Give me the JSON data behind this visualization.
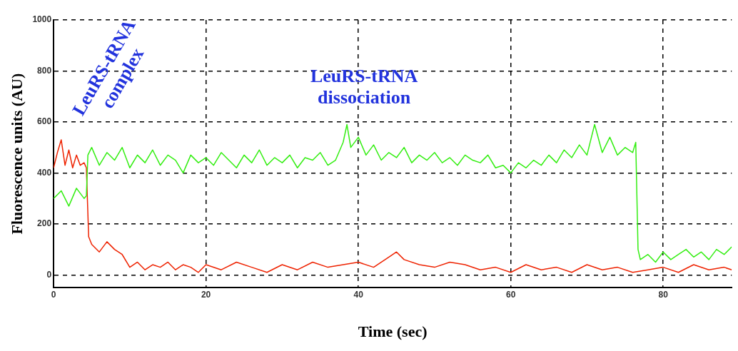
{
  "chart_data": {
    "type": "line",
    "xlabel": "Time (sec)",
    "ylabel": "Fluorescence units (AU)",
    "xlim": [
      0,
      89
    ],
    "xticks": [
      0,
      20,
      40,
      60,
      80
    ],
    "ylim": [
      -50,
      1000
    ],
    "yticks": [
      0,
      200,
      400,
      600,
      800,
      1000
    ],
    "grid": true,
    "line_style": "solid",
    "marker": "none",
    "annotations": [
      "LeuRS-tRNA complex",
      "LeuRS-tRNA dissociation"
    ],
    "series": [
      {
        "color": "#33ee11",
        "x": [
          0,
          1,
          2,
          3,
          4,
          4.3,
          4.5,
          5,
          6,
          7,
          8,
          9,
          10,
          11,
          12,
          13,
          14,
          15,
          16,
          17,
          18,
          19,
          20,
          21,
          22,
          23,
          24,
          25,
          26,
          27,
          28,
          29,
          30,
          31,
          32,
          33,
          34,
          35,
          36,
          37,
          38,
          38.5,
          39,
          40,
          41,
          42,
          43,
          44,
          45,
          46,
          47,
          48,
          49,
          50,
          51,
          52,
          53,
          54,
          55,
          56,
          57,
          58,
          59,
          60,
          61,
          62,
          63,
          64,
          65,
          66,
          67,
          68,
          69,
          70,
          71,
          72,
          73,
          74,
          75,
          76,
          76.4,
          76.7,
          77,
          78,
          79,
          80,
          81,
          82,
          83,
          84,
          85,
          86,
          87,
          88,
          89
        ],
        "values": [
          300,
          330,
          270,
          340,
          300,
          310,
          470,
          500,
          430,
          480,
          450,
          500,
          420,
          470,
          440,
          490,
          430,
          470,
          450,
          400,
          470,
          440,
          460,
          430,
          480,
          450,
          420,
          470,
          440,
          490,
          430,
          460,
          440,
          470,
          420,
          460,
          450,
          480,
          430,
          450,
          520,
          590,
          500,
          540,
          470,
          510,
          450,
          480,
          460,
          500,
          440,
          470,
          450,
          480,
          440,
          460,
          430,
          470,
          450,
          440,
          470,
          420,
          430,
          400,
          440,
          420,
          450,
          430,
          470,
          440,
          490,
          460,
          510,
          470,
          590,
          480,
          540,
          470,
          500,
          480,
          520,
          100,
          60,
          80,
          50,
          90,
          60,
          80,
          100,
          70,
          90,
          60,
          100,
          80,
          110
        ]
      },
      {
        "color": "#ee2200",
        "x": [
          0,
          0.5,
          1,
          1.5,
          2,
          2.5,
          3,
          3.5,
          4,
          4.3,
          4.6,
          5,
          6,
          7,
          8,
          9,
          10,
          11,
          12,
          13,
          14,
          15,
          16,
          17,
          18,
          19,
          20,
          22,
          24,
          26,
          28,
          30,
          32,
          34,
          36,
          38,
          40,
          42,
          44,
          45,
          46,
          48,
          50,
          52,
          54,
          56,
          58,
          60,
          62,
          64,
          66,
          68,
          70,
          72,
          74,
          76,
          78,
          80,
          82,
          84,
          86,
          88,
          89
        ],
        "values": [
          420,
          480,
          530,
          430,
          490,
          420,
          470,
          430,
          440,
          420,
          150,
          120,
          90,
          130,
          100,
          80,
          30,
          50,
          20,
          40,
          30,
          50,
          20,
          40,
          30,
          10,
          40,
          20,
          50,
          30,
          10,
          40,
          20,
          50,
          30,
          40,
          50,
          30,
          70,
          90,
          60,
          40,
          30,
          50,
          40,
          20,
          30,
          10,
          40,
          20,
          30,
          10,
          40,
          20,
          30,
          10,
          20,
          30,
          10,
          40,
          20,
          30,
          20
        ]
      }
    ]
  }
}
